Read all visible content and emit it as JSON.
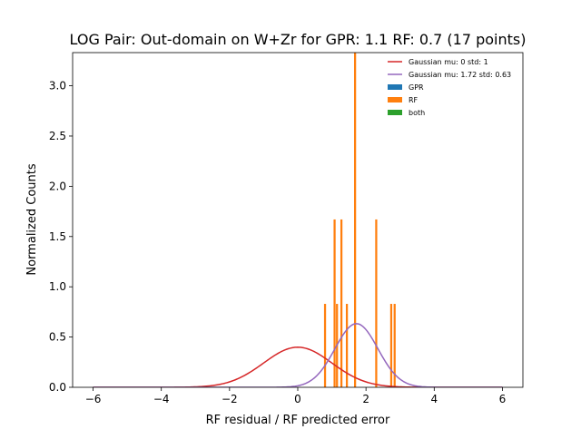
{
  "chart_data": {
    "type": "bar",
    "title": "LOG Pair: Out-domain on W+Zr for GPR: 1.1 RF: 0.7 (17 points)",
    "xlabel": "RF residual / RF predicted error",
    "ylabel": "Normalized Counts",
    "xlim": [
      -6.6,
      6.6
    ],
    "ylim": [
      0,
      3.33
    ],
    "xticks": [
      -6,
      -4,
      -2,
      0,
      2,
      4,
      6
    ],
    "xtick_labels": [
      "−6",
      "−4",
      "−2",
      "0",
      "2",
      "4",
      "6"
    ],
    "yticks": [
      0.0,
      0.5,
      1.0,
      1.5,
      2.0,
      2.5,
      3.0
    ],
    "ytick_labels": [
      "0.0",
      "0.5",
      "1.0",
      "1.5",
      "2.0",
      "2.5",
      "3.0"
    ],
    "grid": false,
    "legend_position": "top-right",
    "legend": [
      {
        "label": "Gaussian mu: 0 std: 1",
        "color": "#d62728",
        "kind": "line"
      },
      {
        "label": "Gaussian mu: 1.72 std: 0.63",
        "color": "#9467bd",
        "kind": "line"
      },
      {
        "label": "GPR",
        "color": "#1f77b4",
        "kind": "patch"
      },
      {
        "label": "RF",
        "color": "#ff7f0e",
        "kind": "patch"
      },
      {
        "label": "both",
        "color": "#2ca02c",
        "kind": "patch"
      }
    ],
    "rf_bars": [
      {
        "x": 0.8,
        "height": 0.83
      },
      {
        "x": 1.08,
        "height": 1.67
      },
      {
        "x": 1.15,
        "height": 0.83
      },
      {
        "x": 1.28,
        "height": 1.67
      },
      {
        "x": 1.44,
        "height": 0.83
      },
      {
        "x": 1.68,
        "height": 3.33
      },
      {
        "x": 2.3,
        "height": 1.67
      },
      {
        "x": 2.74,
        "height": 0.83
      },
      {
        "x": 2.84,
        "height": 0.83
      }
    ],
    "rf_bar_width": 0.06,
    "gaussians": [
      {
        "mu": 0,
        "std": 1,
        "color": "#d62728"
      },
      {
        "mu": 1.72,
        "std": 0.63,
        "color": "#9467bd"
      }
    ],
    "curve_range": [
      -6,
      6
    ]
  }
}
